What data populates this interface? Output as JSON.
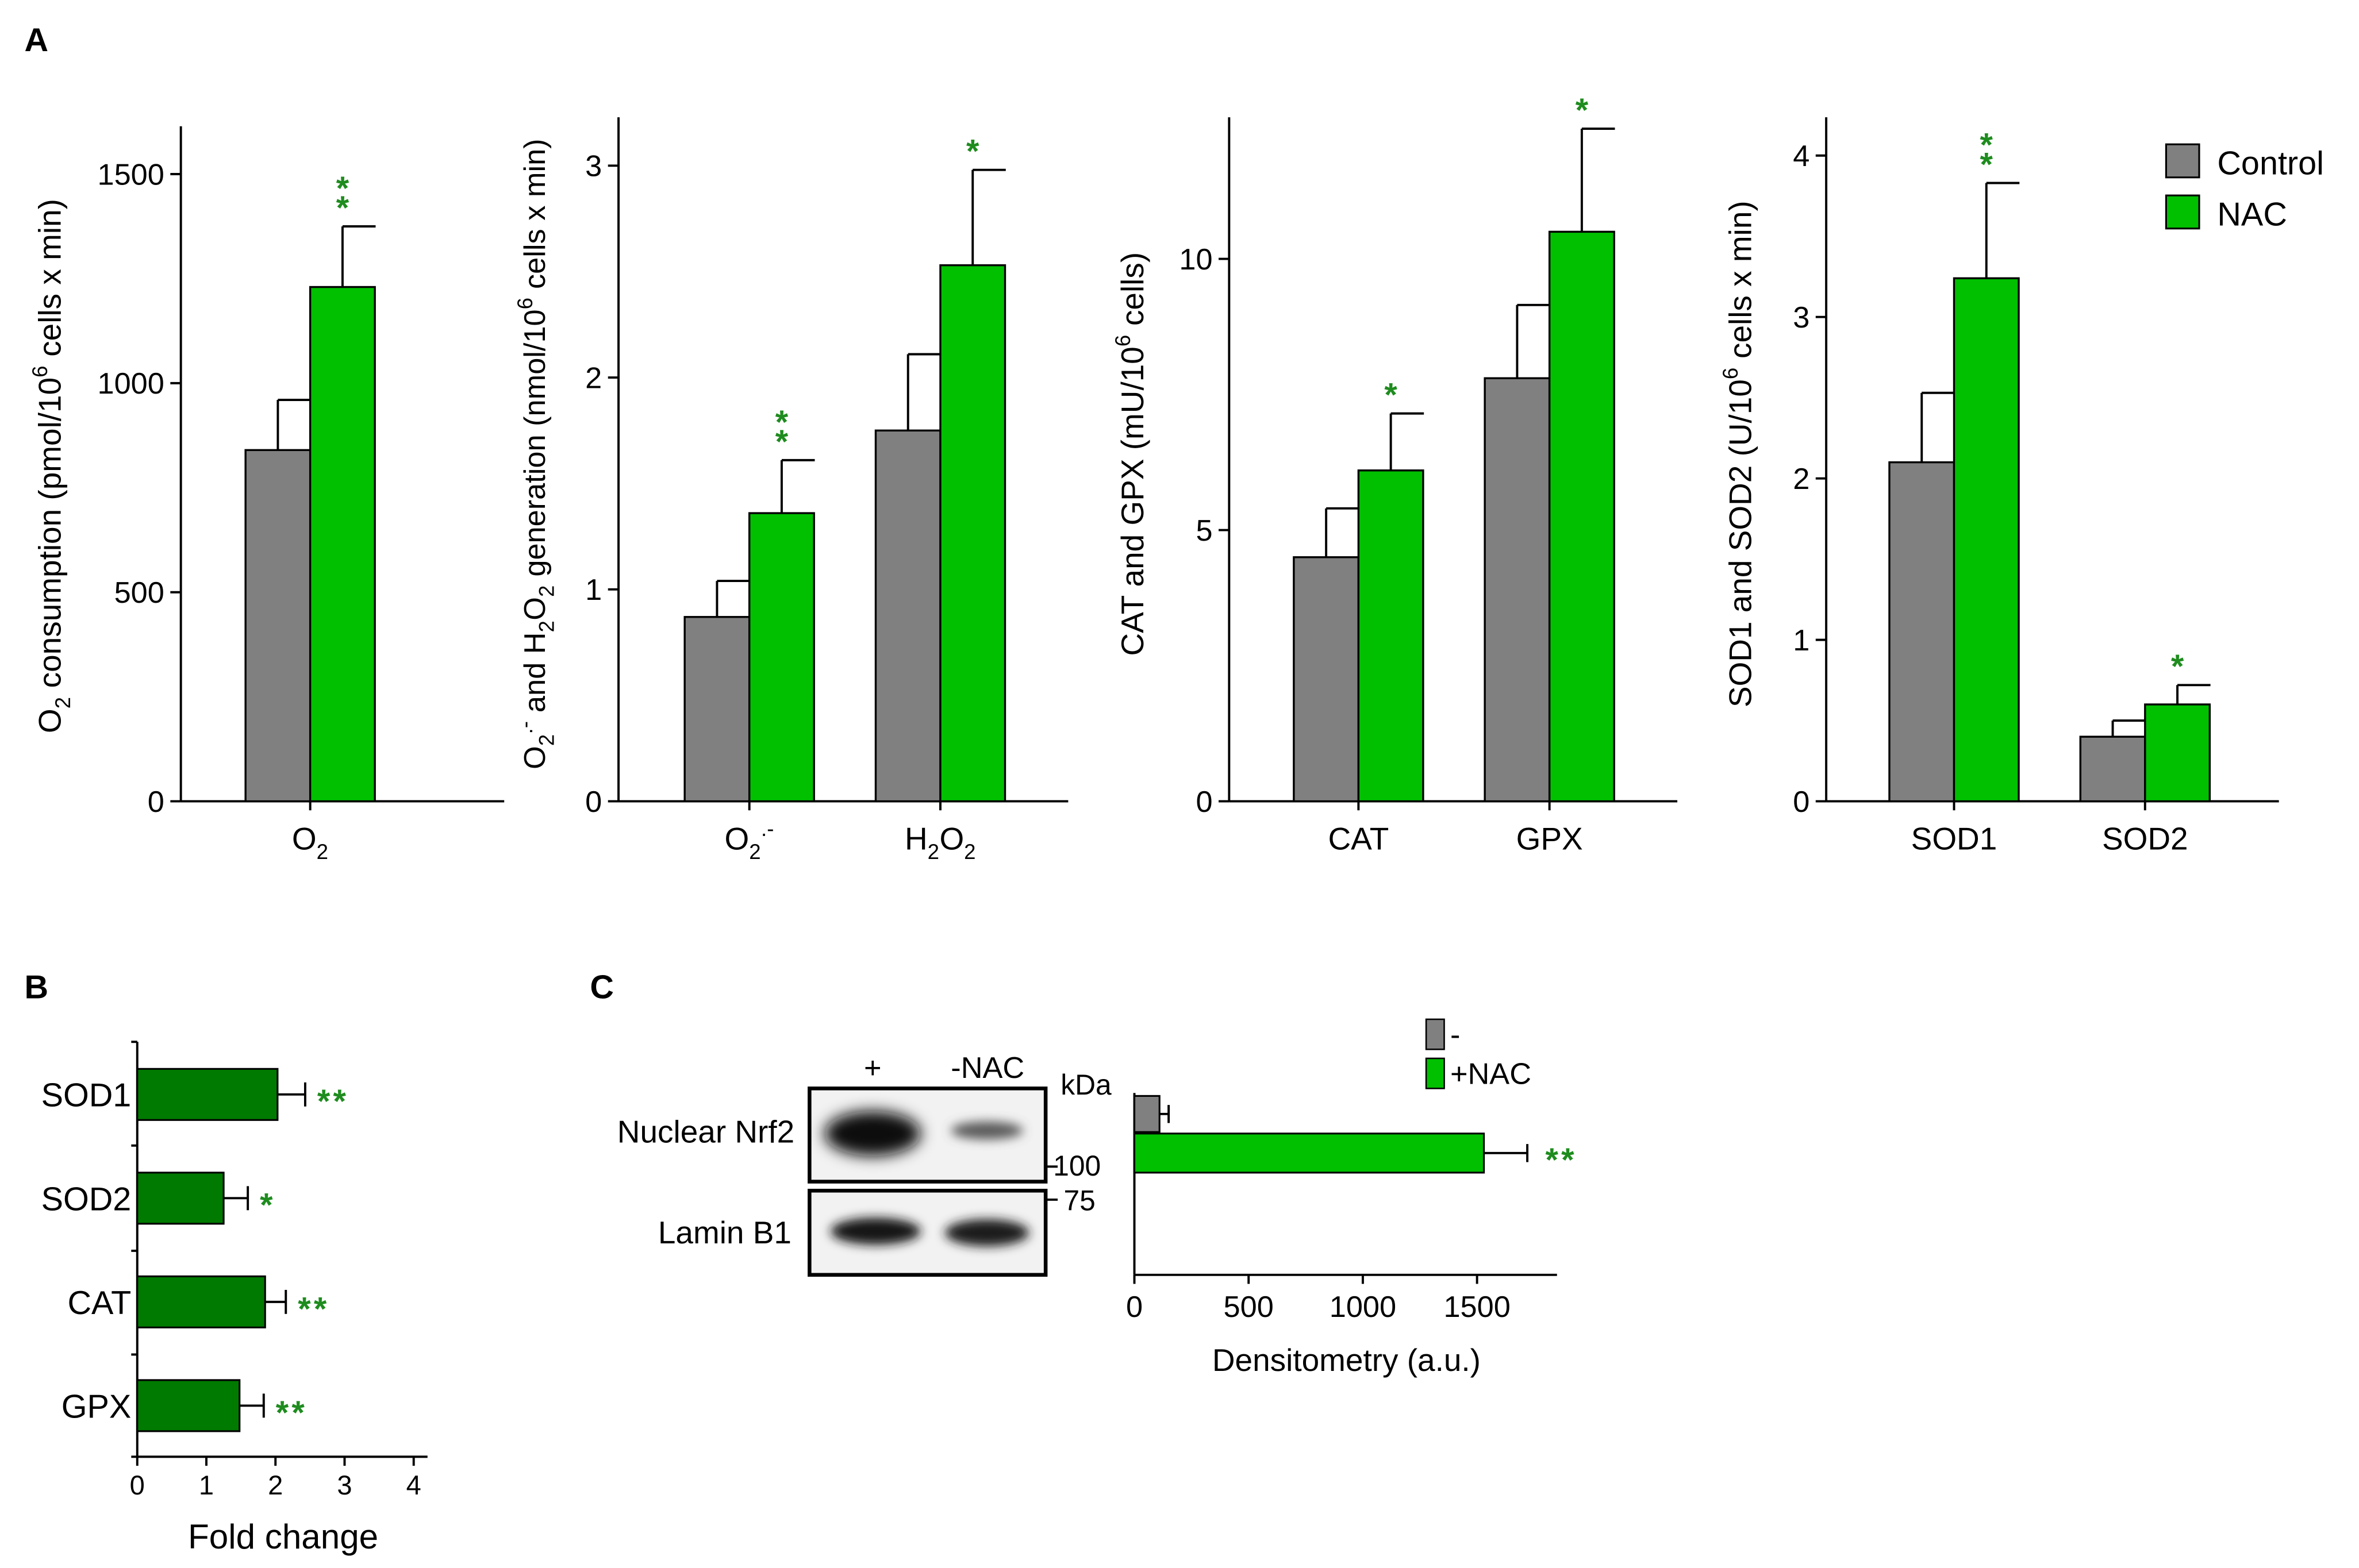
{
  "panel_labels": {
    "a": "A",
    "b": "B",
    "c": "C"
  },
  "colors": {
    "control": "#808080",
    "nac": "#00C000",
    "fold": "#007A00",
    "star": "#1E8C1E",
    "axis": "#000000"
  },
  "legend": {
    "control": "Control",
    "nac": "NAC"
  },
  "chart_data": [
    {
      "id": "o2",
      "panel": "A",
      "type": "bar",
      "ylabel": "O2 consumption (pmol/10^6 cells x min)",
      "ylabel_parts": {
        "a": "O",
        "a_sub": "2",
        "b": " consumption (pmol/10",
        "b_sup": "6",
        "c": " cells  x min)"
      },
      "ylim": [
        0,
        1600
      ],
      "yticks": [
        0,
        500,
        1000,
        1500
      ],
      "categories": [
        "O2"
      ],
      "category_labels": [
        {
          "main": "O",
          "sub": "2",
          "tail": "",
          "sup": ""
        }
      ],
      "series": [
        {
          "name": "Control",
          "values": [
            840
          ],
          "errors": [
            120
          ],
          "stars": [
            ""
          ]
        },
        {
          "name": "NAC",
          "values": [
            1230
          ],
          "errors": [
            145
          ],
          "stars": [
            "**"
          ]
        }
      ]
    },
    {
      "id": "ros",
      "panel": "A",
      "type": "bar",
      "ylabel": "O2.- and H2O2 generation (nmol/10^6 cells x min)",
      "ylabel_parts": {
        "a": "O",
        "a_sub": "2",
        "a_sup": ".-",
        "b": " and  H",
        "b_sub": "2",
        "c": "O",
        "c_sub": "2",
        "d": " generation (nmol/10",
        "d_sup": "6",
        "e": " cells  x min)"
      },
      "ylim": [
        0,
        3.2
      ],
      "yticks": [
        0,
        1,
        2,
        3
      ],
      "categories": [
        "O2.-",
        "H2O2"
      ],
      "category_labels": [
        {
          "main": "O",
          "sub": "2",
          "tail": "",
          "sup": ".-"
        },
        {
          "main": "H",
          "sub": "2",
          "tail": "O",
          "tail_sub": "2",
          "sup": ""
        }
      ],
      "series": [
        {
          "name": "Control",
          "values": [
            0.87,
            1.75
          ],
          "errors": [
            0.17,
            0.36
          ],
          "stars": [
            "",
            ""
          ]
        },
        {
          "name": "NAC",
          "values": [
            1.36,
            2.53
          ],
          "errors": [
            0.25,
            0.45
          ],
          "stars": [
            "**",
            "*"
          ]
        }
      ]
    },
    {
      "id": "cat_gpx",
      "panel": "A",
      "type": "bar",
      "ylabel": "CAT and GPX (mU/10^6 cells)",
      "ylabel_parts": {
        "a": "CAT and GPX (mU/10",
        "a_sup": "6",
        "b": " cells)"
      },
      "ylim": [
        0,
        12.5
      ],
      "yticks": [
        0,
        5,
        10
      ],
      "categories": [
        "CAT",
        "GPX"
      ],
      "category_labels": [
        {
          "main": "CAT"
        },
        {
          "main": "GPX"
        }
      ],
      "series": [
        {
          "name": "Control",
          "values": [
            4.5,
            7.8
          ],
          "errors": [
            0.9,
            1.35
          ],
          "stars": [
            "",
            ""
          ]
        },
        {
          "name": "NAC",
          "values": [
            6.1,
            10.5
          ],
          "errors": [
            1.05,
            1.9
          ],
          "stars": [
            "*",
            "*"
          ]
        }
      ]
    },
    {
      "id": "sod",
      "panel": "A",
      "type": "bar",
      "ylabel": "SOD1 and SOD2 (U/10^6 cells x min)",
      "ylabel_parts": {
        "a": "SOD1 and SOD2 (U/10",
        "a_sup": "6",
        "b": " cells  x min)"
      },
      "ylim": [
        0,
        4.2
      ],
      "yticks": [
        0,
        1,
        2,
        3,
        4
      ],
      "categories": [
        "SOD1",
        "SOD2"
      ],
      "category_labels": [
        {
          "main": "SOD1"
        },
        {
          "main": "SOD2"
        }
      ],
      "series": [
        {
          "name": "Control",
          "values": [
            2.1,
            0.4
          ],
          "errors": [
            0.43,
            0.1
          ],
          "stars": [
            "",
            ""
          ]
        },
        {
          "name": "NAC",
          "values": [
            3.24,
            0.6
          ],
          "errors": [
            0.59,
            0.12
          ],
          "stars": [
            "**",
            "*"
          ]
        }
      ]
    },
    {
      "id": "fold",
      "panel": "B",
      "type": "bar",
      "orientation": "horizontal",
      "xlabel": "Fold change",
      "xlim": [
        0,
        4.2
      ],
      "xticks": [
        0,
        1,
        2,
        3,
        4
      ],
      "categories": [
        "SOD1",
        "SOD2",
        "CAT",
        "GPX"
      ],
      "values": [
        2.03,
        1.25,
        1.85,
        1.48
      ],
      "errors": [
        0.4,
        0.35,
        0.3,
        0.35
      ],
      "stars": [
        "**",
        "*",
        "**",
        "**"
      ]
    },
    {
      "id": "densitometry",
      "panel": "C",
      "type": "bar",
      "orientation": "horizontal",
      "xlabel": "Densitometry (a.u.)",
      "xlim": [
        0,
        1850
      ],
      "xticks": [
        0,
        500,
        1000,
        1500
      ],
      "legend": [
        "-",
        "+NAC"
      ],
      "series": [
        {
          "name": "-",
          "value": 110,
          "error": 40,
          "stars": ""
        },
        {
          "name": "+NAC",
          "value": 1530,
          "error": 190,
          "stars": "**"
        }
      ]
    }
  ],
  "blot": {
    "lanes": [
      "+",
      "-"
    ],
    "lane_suffix": "NAC",
    "kda_label": "kDa",
    "rows": [
      "Nuclear Nrf2",
      "Lamin B1"
    ],
    "markers": [
      "100",
      "75"
    ]
  }
}
